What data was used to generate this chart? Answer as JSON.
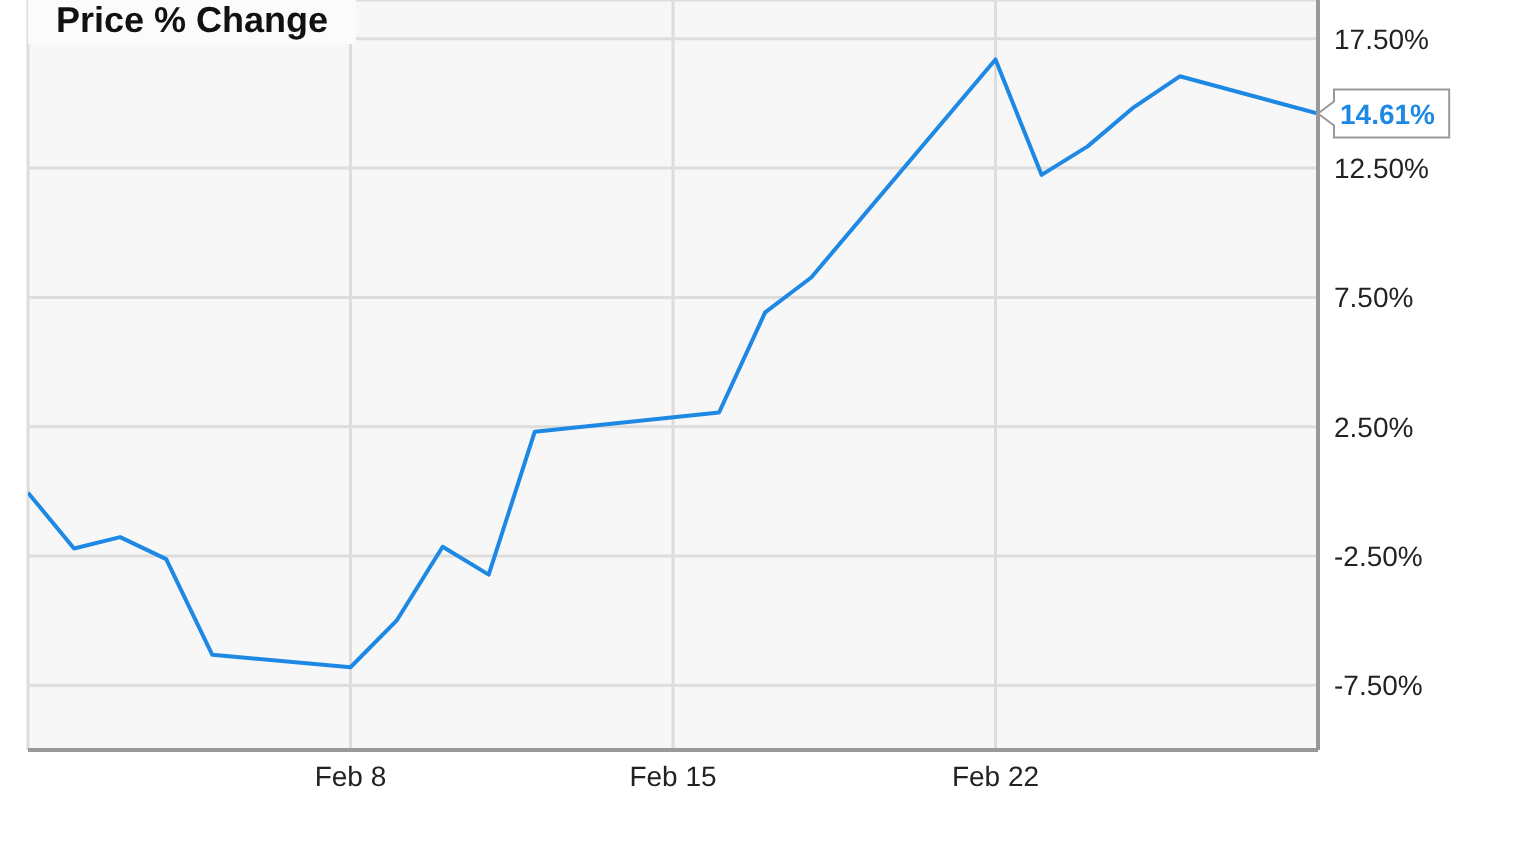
{
  "chart_data": {
    "type": "line",
    "title": "Price % Change",
    "x": [
      "--02-01",
      "--02-02",
      "--02-03",
      "--02-04",
      "--02-05",
      "--02-08",
      "--02-09",
      "--02-10",
      "--02-11",
      "--02-12",
      "--02-16",
      "--02-17",
      "--02-18",
      "--02-22",
      "--02-23",
      "--02-24",
      "--02-25",
      "--02-26",
      "--02-29"
    ],
    "series": [
      {
        "color": "#1e88e5",
        "values": [
          -0.05,
          -2.21,
          -1.77,
          -2.62,
          -6.32,
          -6.8,
          -5.0,
          -2.14,
          -3.22,
          2.31,
          3.05,
          6.92,
          8.27,
          16.7,
          12.24,
          13.34,
          14.85,
          16.05,
          14.61
        ],
        "value_labels": [
          null,
          null,
          null,
          null,
          null,
          null,
          null,
          null,
          null,
          null,
          null,
          null,
          null,
          null,
          null,
          null,
          null,
          null,
          "14.61%"
        ]
      }
    ],
    "xlim": [
      "--02-01",
      "--02-29"
    ],
    "xticks": [
      {
        "value": "--02-08",
        "label": "Feb 8"
      },
      {
        "value": "--02-15",
        "label": "Feb 15"
      },
      {
        "value": "--02-22",
        "label": "Feb 22"
      }
    ],
    "ylim": [
      -10,
      19
    ],
    "yticks": [
      {
        "value": -7.5,
        "label": "-7.50%"
      },
      {
        "value": -2.5,
        "label": "-2.50%"
      },
      {
        "value": 2.5,
        "label": "2.50%"
      },
      {
        "value": 7.5,
        "label": "7.50%"
      },
      {
        "value": 12.5,
        "label": "12.50%"
      },
      {
        "value": 17.5,
        "label": "17.50%"
      }
    ],
    "grid": true,
    "marker": "none",
    "line_style": "solid"
  }
}
